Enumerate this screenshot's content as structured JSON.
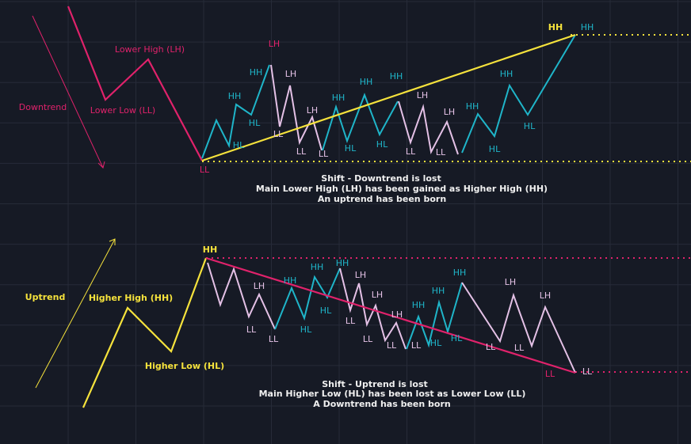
{
  "colors": {
    "background": "#161a25",
    "grid": "#262b38",
    "downtrend": "#e0226b",
    "uptrend_leg": "#1fb5c9",
    "downtrend_leg": "#e4c1e6",
    "uptrend": "#f5e23c"
  },
  "top": {
    "trend_label": "Downtrend",
    "lower_high_label": "Lower High (LH)",
    "lower_low_label": "Lower Low (LL)",
    "pivot_labels": [
      "LL",
      "HH",
      "HH",
      "HL",
      "HL",
      "LH",
      "LH",
      "LL",
      "LH",
      "LL",
      "LL",
      "HH",
      "HH",
      "HH",
      "HL",
      "HL",
      "LH",
      "LH",
      "LL",
      "LL",
      "HH",
      "HL",
      "HH",
      "HL",
      "HH",
      "HH"
    ],
    "note": [
      "Shift - Downtrend is lost",
      "Main Lower High (LH) has been gained as Higher High (HH)",
      "An uptrend has been born"
    ]
  },
  "bottom": {
    "trend_label": "Uptrend",
    "higher_high_label": "Higher High (HH)",
    "higher_low_label": "Higher Low (HL)",
    "pivot_labels": [
      "HH",
      "LH",
      "LL",
      "LL",
      "HH",
      "HL",
      "HH",
      "HH",
      "HL",
      "LH",
      "LL",
      "LH",
      "LL",
      "LH",
      "LL",
      "LL",
      "HH",
      "HL",
      "HH",
      "HL",
      "HH",
      "LH",
      "LH",
      "LL",
      "LL",
      "LL",
      "LL"
    ],
    "note": [
      "Shift - Uptrend is lost",
      "Main Higher Low (HL) has been lost as Lower Low (LL)",
      "A Downtrend has been born"
    ]
  }
}
